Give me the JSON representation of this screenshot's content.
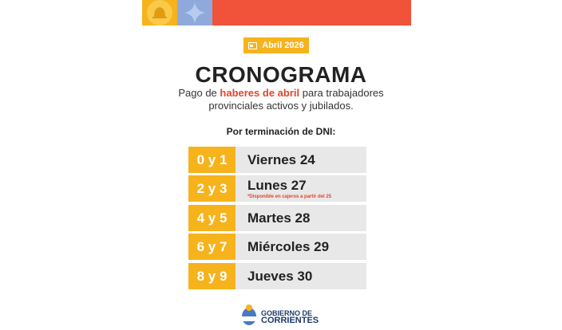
{
  "badge": "Abril 2026",
  "title": "CRONOGRAMA",
  "subtitle": {
    "before": "Pago de",
    "highlight": "haberes de abril",
    "after": "para trabajadores",
    "line2": "provinciales activos y jubilados."
  },
  "heading": "Por terminación de DNI:",
  "rows": [
    {
      "dni": "0 y 1",
      "day": "Viernes 24"
    },
    {
      "dni": "2 y 3",
      "day": "Lunes 27",
      "note": "*Disponible en cajeros a partir del 25"
    },
    {
      "dni": "4 y 5",
      "day": "Martes 28"
    },
    {
      "dni": "6 y 7",
      "day": "Miércoles 29"
    },
    {
      "dni": "8 y 9",
      "day": "Jueves 30"
    }
  ],
  "footer": {
    "line1": "GOBIERNO DE",
    "line2": "CORRIENTES"
  }
}
